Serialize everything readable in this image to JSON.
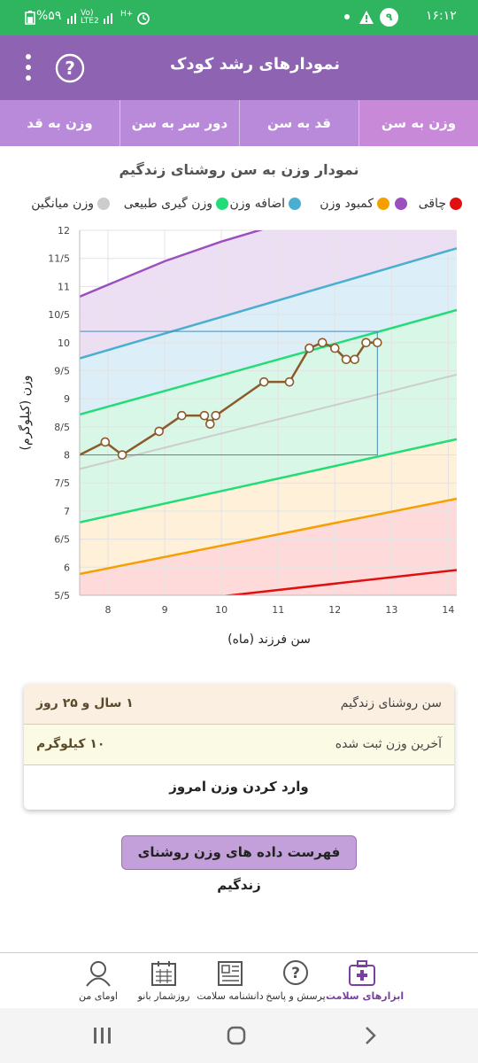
{
  "status_bar": {
    "battery": "%۵۹",
    "network": "Vo) LTE2",
    "signal_extra": "H+",
    "notification_count": "۹",
    "time": "۱۶:۱۲"
  },
  "app_bar": {
    "title": "نمودارهای رشد کودک",
    "help_icon": "question-circle-icon",
    "menu_icon": "more-vert-icon"
  },
  "tabs": [
    {
      "label": "وزن به سن",
      "active": true
    },
    {
      "label": "قد به سن",
      "active": false
    },
    {
      "label": "دور سر به سن",
      "active": false
    },
    {
      "label": "وزن به قد",
      "active": false
    }
  ],
  "chart_data": {
    "type": "line",
    "title": "نمودار وزن به سن روشنای زندگیم",
    "xlabel": "سن فرزند (ماه)",
    "ylabel": "وزن (کیلوگرم)",
    "xlim": [
      7.5,
      14.15
    ],
    "ylim": [
      5.5,
      12
    ],
    "x_ticks": [
      "8",
      "9",
      "10",
      "11",
      "12",
      "13",
      "14"
    ],
    "y_ticks": [
      "5/5",
      "6",
      "6/5",
      "7",
      "7/5",
      "8",
      "8/5",
      "9",
      "9/5",
      "10",
      "10/5",
      "11",
      "11/5",
      "12"
    ],
    "grid": true,
    "legend": [
      {
        "label": "چاقی",
        "color": "#e01010"
      },
      {
        "label": "کمبود وزن",
        "color": "#f5a000"
      },
      {
        "label": "اضافه وزن",
        "color": "#4aaed0"
      },
      {
        "label": "وزن گیری طبیعی",
        "color": "#22dd77"
      },
      {
        "label": "وزن میانگین",
        "color": "#cccccc"
      }
    ],
    "reference_lines": [
      {
        "name": "red",
        "color": "#e01010",
        "x": [
          7.5,
          14.15
        ],
        "y": [
          5.2,
          5.95
        ]
      },
      {
        "name": "orange",
        "color": "#f5a000",
        "x": [
          7.5,
          14.15
        ],
        "y": [
          5.88,
          7.22
        ]
      },
      {
        "name": "green-low",
        "color": "#22dd77",
        "x": [
          7.5,
          14.15
        ],
        "y": [
          6.8,
          8.28
        ]
      },
      {
        "name": "median",
        "color": "#cccccc",
        "x": [
          7.5,
          14.15
        ],
        "y": [
          7.75,
          9.43
        ]
      },
      {
        "name": "green-high",
        "color": "#22dd77",
        "x": [
          7.5,
          14.15
        ],
        "y": [
          8.72,
          10.58
        ]
      },
      {
        "name": "blue",
        "color": "#4aaed0",
        "x": [
          7.5,
          14.15
        ],
        "y": [
          9.72,
          11.68
        ]
      },
      {
        "name": "purple",
        "color": "#9c4fbf",
        "x": [
          7.5,
          9.0,
          10.0,
          11.0,
          12.0,
          14.15
        ],
        "y": [
          10.82,
          11.45,
          11.8,
          12.1,
          12.4,
          13.0
        ]
      }
    ],
    "highlight_box": {
      "x": [
        7.5,
        12.75
      ],
      "y": [
        8.0,
        10.2
      ]
    },
    "series": [
      {
        "color": "#8b5a2b",
        "x": [
          7.5,
          7.95,
          8.25,
          8.9,
          9.3,
          9.7,
          9.8,
          9.9,
          10.75,
          11.2,
          11.55,
          11.78,
          12.0,
          12.2,
          12.35,
          12.55,
          12.75
        ],
        "y": [
          8.0,
          8.23,
          8.0,
          8.42,
          8.7,
          8.7,
          8.55,
          8.7,
          9.3,
          9.3,
          9.9,
          10.0,
          9.9,
          9.7,
          9.7,
          10.0,
          10.0
        ]
      }
    ]
  },
  "info_card": {
    "age_label": "سن روشنای زندگیم",
    "age_value": "۱ سال و ۲۵ روز",
    "weight_label": "آخرین وزن ثبت شده",
    "weight_value": "۱۰ کیلوگرم",
    "enter_weight": "وارد کردن وزن امروز"
  },
  "list_button": "فهرست داده های وزن روشنای زندگیم",
  "bottom_nav": [
    {
      "label": "ابزارهای سلامت",
      "icon": "medical-kit-icon",
      "active": true
    },
    {
      "label": "پرسش و پاسخ",
      "icon": "question-bubble-icon",
      "active": false
    },
    {
      "label": "دانشنامه سلامت",
      "icon": "newspaper-icon",
      "active": false
    },
    {
      "label": "روزشمار بانو",
      "icon": "calendar-icon",
      "active": false
    },
    {
      "label": "اومای من",
      "icon": "user-avatar-icon",
      "active": false
    }
  ],
  "system_nav": {
    "recents_icon": "recents-icon",
    "home_icon": "home-icon",
    "back_icon": "back-chevron-icon"
  }
}
